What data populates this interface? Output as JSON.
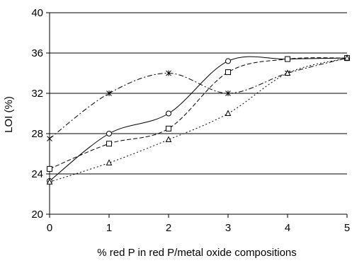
{
  "chart_data": {
    "type": "line",
    "title": "",
    "xlabel": "% red P in red P/metal oxide compositions",
    "ylabel": "LOI (%)",
    "xlim": [
      0,
      5
    ],
    "ylim": [
      20,
      40
    ],
    "xticks": [
      0,
      1,
      2,
      3,
      4,
      5
    ],
    "yticks": [
      20,
      24,
      28,
      32,
      36,
      40
    ],
    "grid": "horizontal",
    "legend": "none",
    "series": [
      {
        "marker": "star",
        "dash": "dash-dot",
        "color": "#000000",
        "x": [
          0,
          1,
          2,
          3,
          4,
          5
        ],
        "y": [
          27.5,
          32.0,
          34.0,
          32.0,
          34.0,
          35.5
        ]
      },
      {
        "marker": "circle",
        "dash": "solid",
        "color": "#000000",
        "x": [
          0,
          1,
          2,
          3,
          4,
          5
        ],
        "y": [
          23.3,
          28.0,
          30.0,
          35.2,
          35.4,
          35.5
        ]
      },
      {
        "marker": "square",
        "dash": "dash",
        "color": "#000000",
        "x": [
          0,
          1,
          2,
          3,
          4,
          5
        ],
        "y": [
          24.5,
          27.0,
          28.5,
          34.1,
          35.4,
          35.5
        ]
      },
      {
        "marker": "triangle",
        "dash": "dot",
        "color": "#000000",
        "x": [
          0,
          1,
          2,
          3,
          4,
          5
        ],
        "y": [
          23.2,
          25.1,
          27.4,
          30.0,
          34.0,
          35.5
        ]
      }
    ]
  }
}
